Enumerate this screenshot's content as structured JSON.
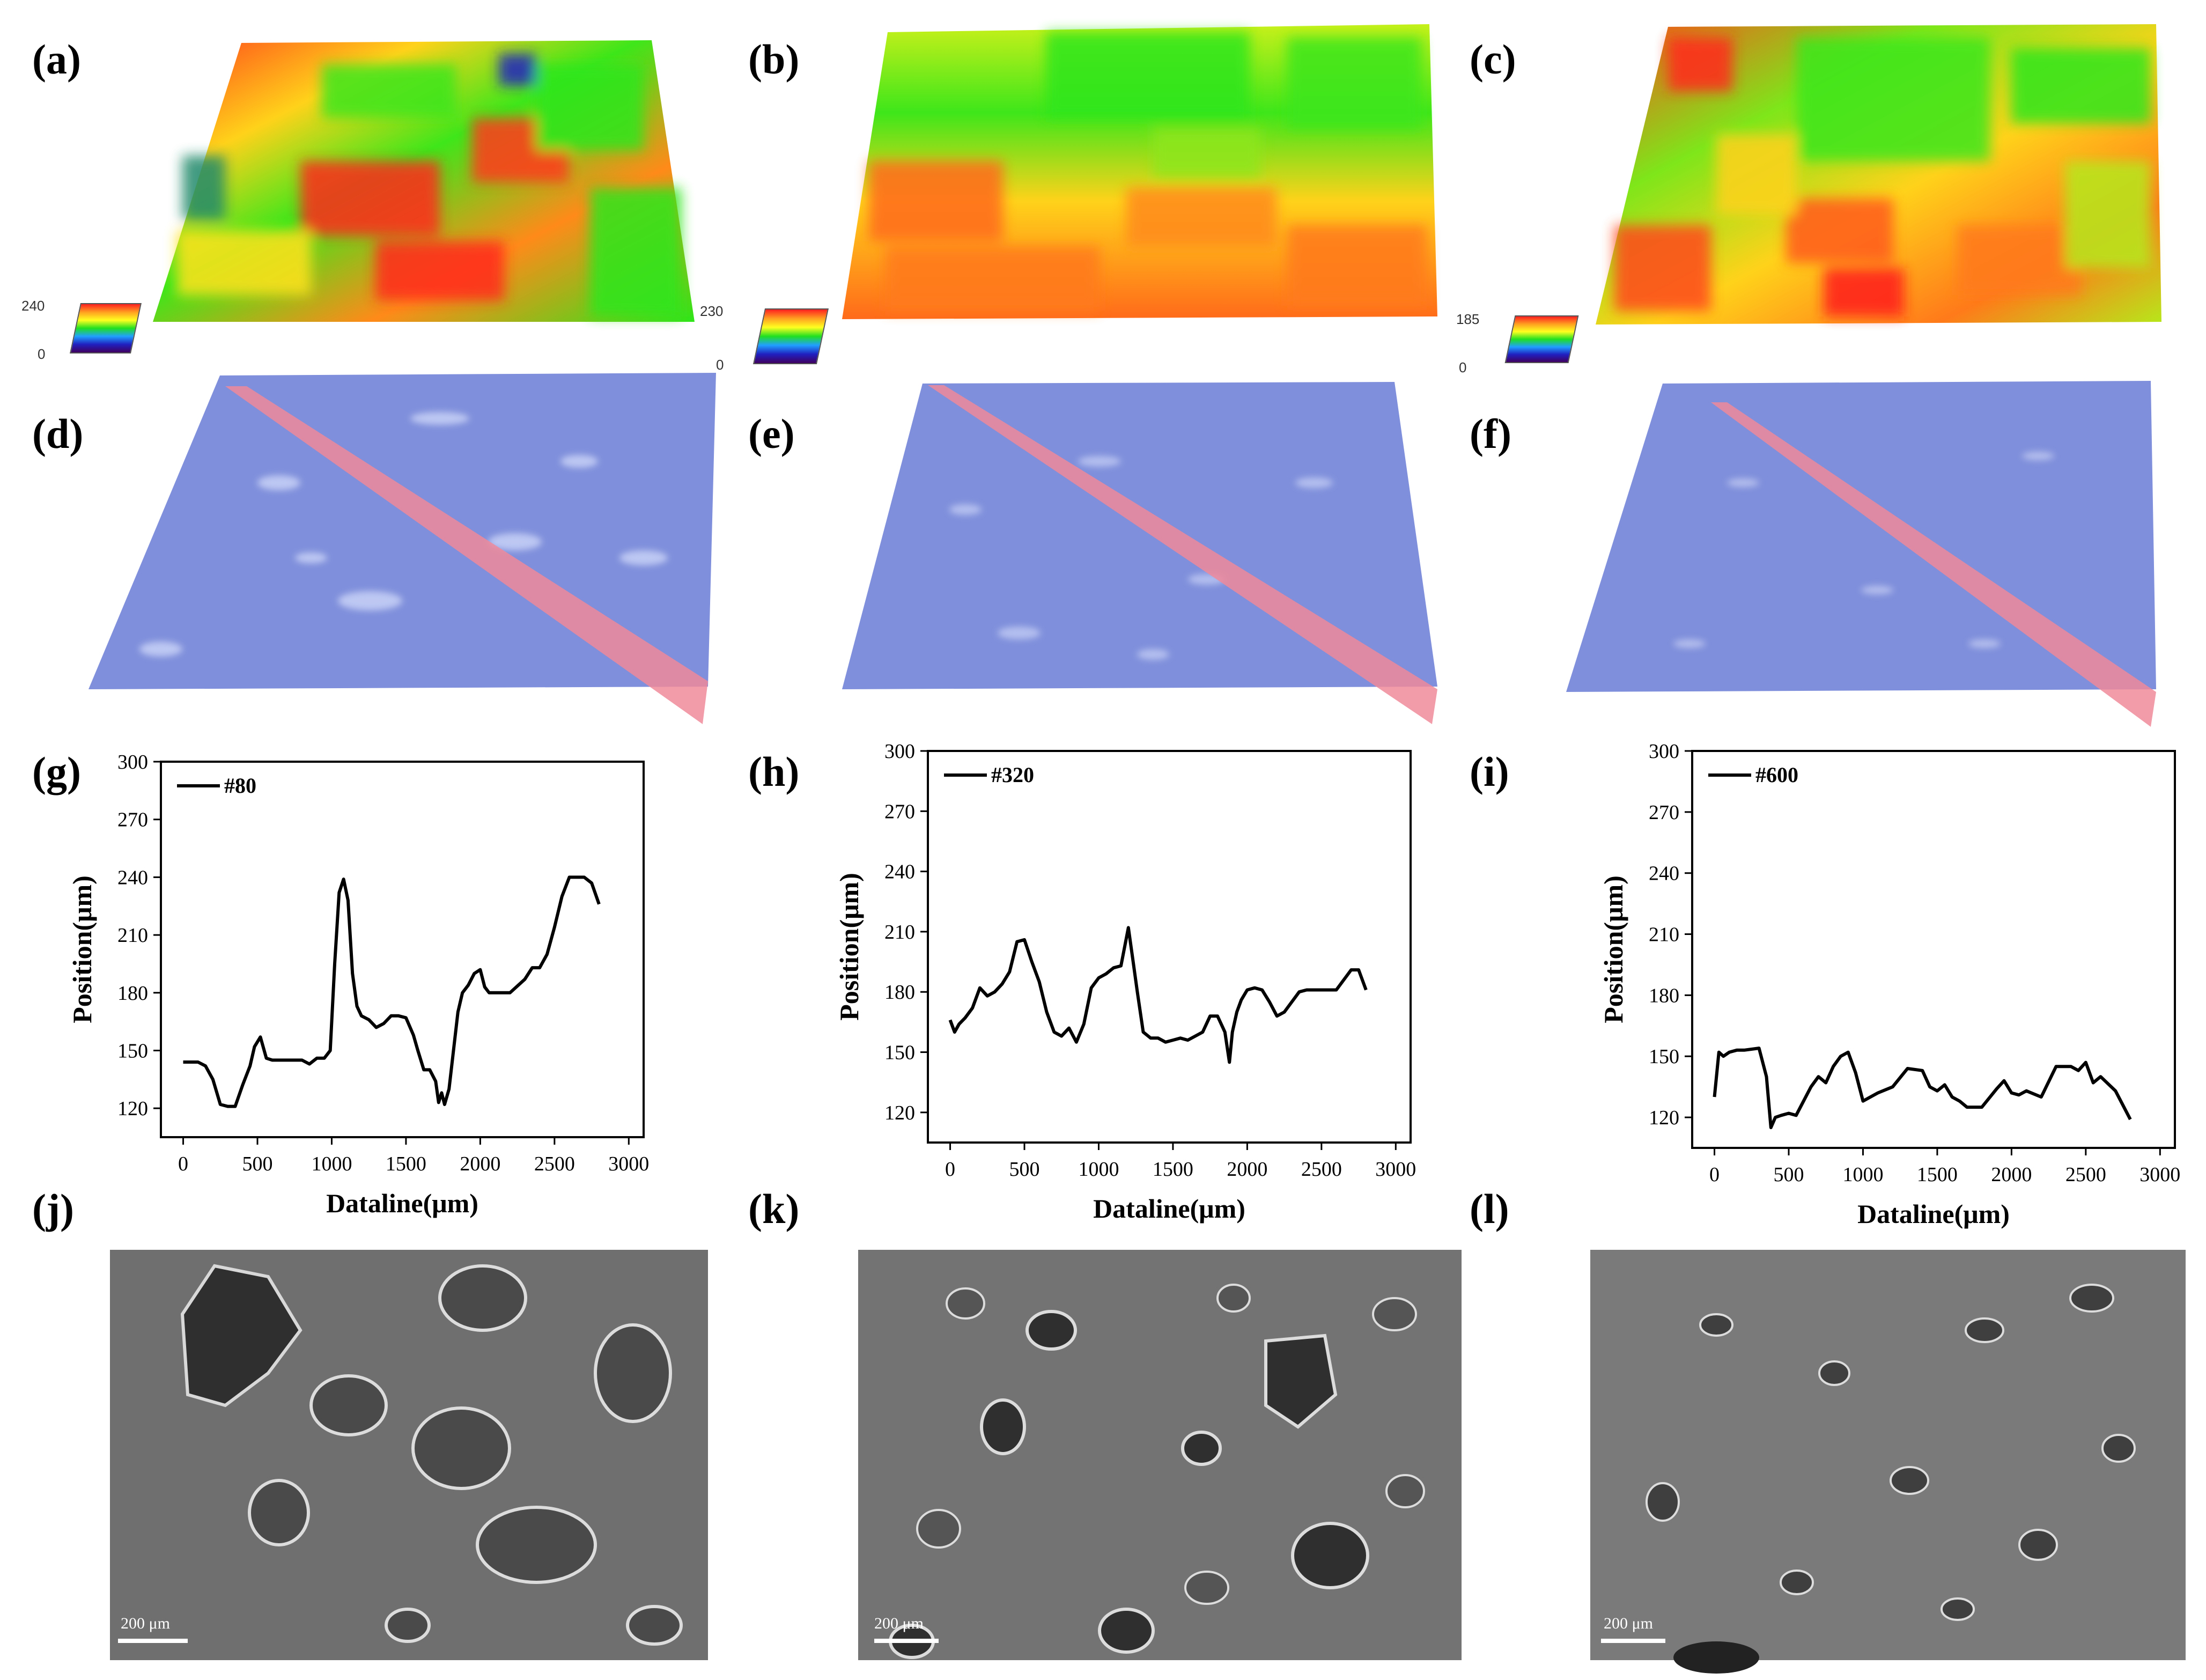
{
  "panel_labels": [
    "(a)",
    "(b)",
    "(c)",
    "(d)",
    "(e)",
    "(f)",
    "(g)",
    "(h)",
    "(i)",
    "(j)",
    "(k)",
    "(l)"
  ],
  "colorbars": [
    {
      "max": "240",
      "min": "0"
    },
    {
      "max": "230",
      "min": "0"
    },
    {
      "max": "185",
      "min": "0"
    }
  ],
  "sem_scale_label": "200 μm",
  "colors": {
    "height_map": [
      "#ff1a1a",
      "#ff8a1a",
      "#ffd21a",
      "#aee81a",
      "#2ee61a"
    ],
    "overlay": "#7f8fdb",
    "cut_plane": "#f08a9a",
    "sem": "#6f6f6f"
  },
  "chart_data": [
    {
      "type": "line",
      "title": "",
      "legend": "#80",
      "xlabel": "Dataline(μm)",
      "ylabel": "Position(μm)",
      "xlim": [
        -150,
        3100
      ],
      "ylim": [
        105,
        300
      ],
      "xticks": [
        0,
        500,
        1000,
        1500,
        2000,
        2500,
        3000
      ],
      "yticks": [
        120,
        150,
        180,
        210,
        240,
        270,
        300
      ],
      "x": [
        0,
        100,
        150,
        200,
        250,
        300,
        350,
        400,
        450,
        480,
        520,
        560,
        600,
        700,
        800,
        850,
        900,
        950,
        990,
        1020,
        1050,
        1080,
        1110,
        1140,
        1170,
        1200,
        1250,
        1300,
        1350,
        1400,
        1450,
        1500,
        1550,
        1580,
        1620,
        1660,
        1700,
        1720,
        1740,
        1760,
        1790,
        1820,
        1850,
        1880,
        1920,
        1960,
        2000,
        2030,
        2060,
        2100,
        2200,
        2300,
        2350,
        2400,
        2450,
        2500,
        2550,
        2600,
        2700,
        2750,
        2800
      ],
      "y": [
        144,
        144,
        142,
        135,
        122,
        121,
        121,
        132,
        142,
        152,
        157,
        146,
        145,
        145,
        145,
        143,
        146,
        146,
        150,
        195,
        232,
        239,
        228,
        190,
        173,
        168,
        166,
        162,
        164,
        168,
        168,
        167,
        158,
        150,
        140,
        140,
        134,
        123,
        128,
        122,
        130,
        150,
        170,
        180,
        184,
        190,
        192,
        183,
        180,
        180,
        180,
        187,
        193,
        193,
        200,
        214,
        230,
        240,
        240,
        237,
        226
      ]
    },
    {
      "type": "line",
      "title": "",
      "legend": "#320",
      "xlabel": "Dataline(μm)",
      "ylabel": "Position(μm)",
      "xlim": [
        -150,
        3100
      ],
      "ylim": [
        105,
        300
      ],
      "xticks": [
        0,
        500,
        1000,
        1500,
        2000,
        2500,
        3000
      ],
      "yticks": [
        120,
        150,
        180,
        210,
        240,
        270,
        300
      ],
      "x": [
        0,
        30,
        60,
        100,
        150,
        200,
        250,
        300,
        350,
        400,
        450,
        500,
        550,
        600,
        650,
        700,
        750,
        800,
        850,
        900,
        950,
        1000,
        1050,
        1100,
        1150,
        1200,
        1230,
        1260,
        1300,
        1350,
        1400,
        1450,
        1500,
        1550,
        1600,
        1650,
        1700,
        1750,
        1800,
        1850,
        1880,
        1900,
        1930,
        1960,
        2000,
        2050,
        2100,
        2150,
        2200,
        2250,
        2300,
        2350,
        2400,
        2500,
        2600,
        2700,
        2750,
        2800
      ],
      "y": [
        166,
        160,
        164,
        167,
        172,
        182,
        178,
        180,
        184,
        190,
        205,
        206,
        195,
        185,
        170,
        160,
        158,
        162,
        155,
        164,
        182,
        187,
        189,
        192,
        193,
        212,
        196,
        180,
        160,
        157,
        157,
        155,
        156,
        157,
        156,
        158,
        160,
        168,
        168,
        160,
        145,
        160,
        170,
        176,
        181,
        182,
        181,
        175,
        168,
        170,
        175,
        180,
        181,
        181,
        181,
        191,
        191,
        181
      ]
    },
    {
      "type": "line",
      "title": "",
      "legend": "#600",
      "xlabel": "Dataline(μm)",
      "ylabel": "Position(μm)",
      "xlim": [
        -150,
        3100
      ],
      "ylim": [
        105,
        300
      ],
      "xticks": [
        0,
        500,
        1000,
        1500,
        2000,
        2500,
        3000
      ],
      "yticks": [
        120,
        150,
        180,
        210,
        240,
        270,
        300
      ],
      "x": [
        0,
        30,
        60,
        100,
        150,
        200,
        300,
        350,
        380,
        410,
        450,
        500,
        550,
        600,
        650,
        700,
        750,
        800,
        850,
        900,
        950,
        1000,
        1050,
        1100,
        1200,
        1300,
        1400,
        1450,
        1500,
        1550,
        1600,
        1650,
        1700,
        1800,
        1900,
        1950,
        2000,
        2050,
        2100,
        2200,
        2300,
        2400,
        2450,
        2500,
        2550,
        2600,
        2700,
        2750,
        2800
      ],
      "y": [
        130,
        152,
        150,
        152,
        153,
        153,
        154,
        140,
        115,
        120,
        121,
        122,
        121,
        128,
        135,
        140,
        137,
        145,
        150,
        152,
        142,
        128,
        130,
        132,
        135,
        144,
        143,
        135,
        133,
        136,
        130,
        128,
        125,
        125,
        134,
        138,
        132,
        131,
        133,
        130,
        145,
        145,
        143,
        147,
        137,
        140,
        133,
        126,
        119
      ]
    }
  ]
}
